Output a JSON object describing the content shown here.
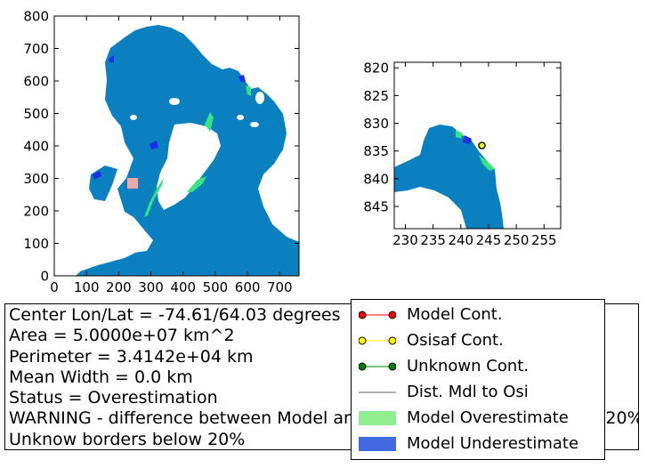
{
  "chart_data": [
    {
      "type": "heatmap",
      "name": "overview-map",
      "xlim": [
        0,
        760
      ],
      "ylim": [
        0,
        800
      ],
      "x_ticks": [
        0,
        100,
        200,
        300,
        400,
        500,
        600,
        700
      ],
      "y_ticks": [
        0,
        100,
        200,
        300,
        400,
        500,
        600,
        700,
        800
      ],
      "colors": {
        "ocean": "#0a80c0",
        "overestimate": "#33e67f",
        "underestimate": "#1a2fe6",
        "highlight": "#f4a7a7"
      }
    },
    {
      "type": "heatmap",
      "name": "zoom-map",
      "xlim": [
        228,
        258
      ],
      "ylim": [
        849,
        819
      ],
      "x_ticks": [
        230,
        235,
        240,
        245,
        250,
        255
      ],
      "y_ticks": [
        820,
        825,
        830,
        835,
        840,
        845
      ],
      "marker": {
        "x": 243.8,
        "y": 834,
        "color": "#ffff00"
      },
      "colors": {
        "ocean": "#0a80c0",
        "overestimate": "#33e67f",
        "underestimate": "#1a2fe6"
      }
    }
  ],
  "info": {
    "lines": [
      "Center Lon/Lat = -74.61/64.03 degrees",
      "Area = 5.0000e+07 km^2",
      "Perimeter = 3.4142e+04 km",
      "Mean Width = 0.0 km",
      "Status = Overestimation",
      "WARNING - difference between Model and Osisaf concentration below 20%",
      "Unknow borders below 20%"
    ]
  },
  "legend": {
    "items": [
      {
        "label": "Model Cont.",
        "kind": "line-marker",
        "line": "#ff0000",
        "face": "#ff0000"
      },
      {
        "label": "Osisaf Cont.",
        "kind": "line-marker",
        "line": "#ffff00",
        "face": "#ffff00"
      },
      {
        "label": "Unknown Cont.",
        "kind": "line-marker",
        "line": "#008000",
        "face": "#008000"
      },
      {
        "label": "Dist. Mdl to Osi",
        "kind": "line",
        "line": "#808080"
      },
      {
        "label": "Model Overestimate",
        "kind": "patch",
        "face": "#90ee90"
      },
      {
        "label": "Model Underestimate",
        "kind": "patch",
        "face": "#4169e1"
      }
    ]
  }
}
